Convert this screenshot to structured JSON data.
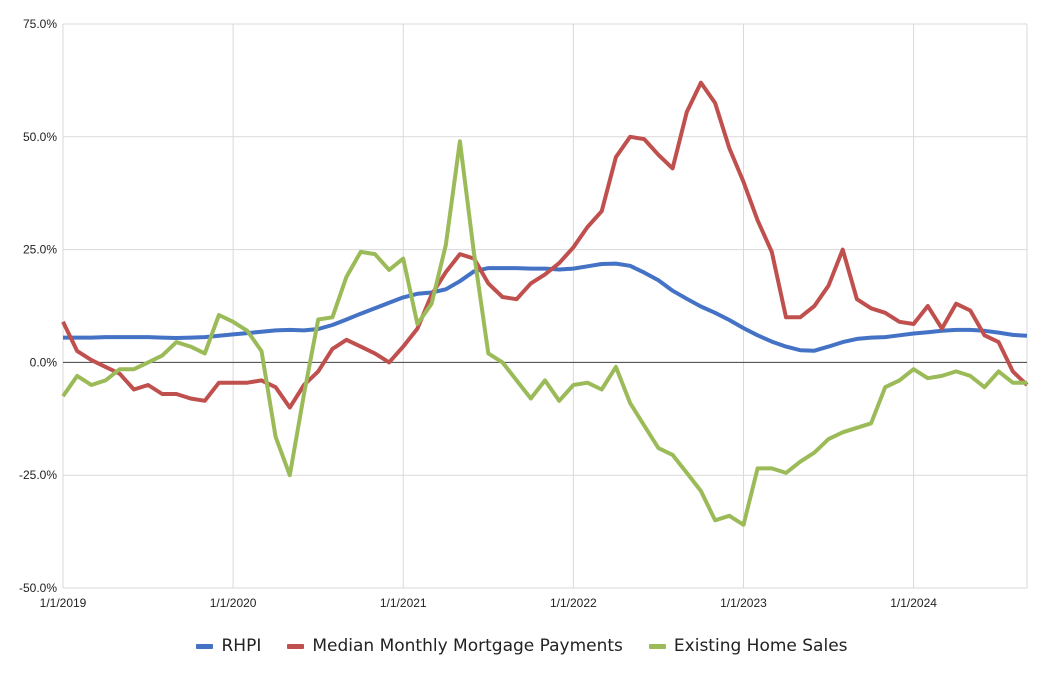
{
  "chart_data": {
    "type": "line",
    "title": "",
    "xlabel": "",
    "ylabel": "",
    "ylim": [
      -50,
      75
    ],
    "y_ticks": [
      "75.0%",
      "50.0%",
      "25.0%",
      "0.0%",
      "-25.0%",
      "-50.0%"
    ],
    "y_tick_values": [
      75,
      50,
      25,
      0,
      -25,
      -50
    ],
    "x_ticks": [
      "1/1/2019",
      "1/1/2020",
      "1/1/2021",
      "1/1/2022",
      "1/1/2023",
      "1/1/2024"
    ],
    "x_tick_values": [
      "2019-01",
      "2020-01",
      "2021-01",
      "2022-01",
      "2023-01",
      "2024-01"
    ],
    "grid": true,
    "legend_position": "bottom",
    "x": [
      "2019-01",
      "2019-02",
      "2019-03",
      "2019-04",
      "2019-05",
      "2019-06",
      "2019-07",
      "2019-08",
      "2019-09",
      "2019-10",
      "2019-11",
      "2019-12",
      "2020-01",
      "2020-02",
      "2020-03",
      "2020-04",
      "2020-05",
      "2020-06",
      "2020-07",
      "2020-08",
      "2020-09",
      "2020-10",
      "2020-11",
      "2020-12",
      "2021-01",
      "2021-02",
      "2021-03",
      "2021-04",
      "2021-05",
      "2021-06",
      "2021-07",
      "2021-08",
      "2021-09",
      "2021-10",
      "2021-11",
      "2021-12",
      "2022-01",
      "2022-02",
      "2022-03",
      "2022-04",
      "2022-05",
      "2022-06",
      "2022-07",
      "2022-08",
      "2022-09",
      "2022-10",
      "2022-11",
      "2022-12",
      "2023-01",
      "2023-02",
      "2023-03",
      "2023-04",
      "2023-05",
      "2023-06",
      "2023-07",
      "2023-08",
      "2023-09",
      "2023-10",
      "2023-11",
      "2023-12",
      "2024-01",
      "2024-02",
      "2024-03",
      "2024-04",
      "2024-05",
      "2024-06",
      "2024-07",
      "2024-08",
      "2024-09"
    ],
    "series": [
      {
        "name": "RHPI",
        "color": "#4472C4",
        "values": [
          5.5,
          5.5,
          5.5,
          5.6,
          5.6,
          5.6,
          5.6,
          5.5,
          5.4,
          5.5,
          5.6,
          5.9,
          6.2,
          6.5,
          6.8,
          7.1,
          7.2,
          7.1,
          7.4,
          8.3,
          9.5,
          10.8,
          12.0,
          13.2,
          14.4,
          15.2,
          15.5,
          16.2,
          18.0,
          20.2,
          20.9,
          20.9,
          20.9,
          20.8,
          20.8,
          20.6,
          20.8,
          21.3,
          21.8,
          21.9,
          21.4,
          19.9,
          18.2,
          15.9,
          14.1,
          12.4,
          11.0,
          9.4,
          7.6,
          6.0,
          4.6,
          3.5,
          2.7,
          2.6,
          3.5,
          4.5,
          5.2,
          5.5,
          5.6,
          6.0,
          6.4,
          6.7,
          7.0,
          7.2,
          7.2,
          7.0,
          6.6,
          6.1,
          5.9
        ]
      },
      {
        "name": "Median Monthly Mortgage Payments",
        "color": "#C0504D",
        "values": [
          9.0,
          2.5,
          0.5,
          -1.0,
          -2.5,
          -6.0,
          -5.0,
          -7.0,
          -7.0,
          -8.0,
          -8.5,
          -4.5,
          -4.5,
          -4.5,
          -4.0,
          -5.5,
          -10.0,
          -5.0,
          -2.0,
          3.0,
          5.0,
          3.5,
          2.0,
          0.0,
          3.5,
          7.5,
          15.0,
          20.0,
          24.0,
          23.0,
          17.5,
          14.5,
          14.0,
          17.5,
          19.5,
          22.0,
          25.5,
          30.0,
          33.5,
          45.5,
          50.0,
          49.5,
          46.0,
          43.0,
          55.5,
          62.0,
          57.5,
          47.5,
          40.0,
          31.5,
          24.5,
          10.0,
          10.0,
          12.5,
          17.0,
          25.0,
          14.0,
          12.0,
          11.0,
          9.0,
          8.5,
          12.5,
          7.5,
          13.0,
          11.5,
          6.0,
          4.5,
          -2.0,
          -5.0
        ]
      },
      {
        "name": "Existing Home Sales",
        "color": "#9BBB59",
        "values": [
          -7.5,
          -3.0,
          -5.0,
          -4.0,
          -1.5,
          -1.5,
          0.0,
          1.5,
          4.5,
          3.5,
          2.0,
          10.5,
          9.0,
          7.0,
          2.5,
          -16.5,
          -25.0,
          -7.0,
          9.5,
          10.0,
          19.0,
          24.5,
          24.0,
          20.5,
          23.0,
          8.5,
          13.0,
          26.0,
          49.0,
          24.0,
          2.0,
          0.0,
          -4.0,
          -8.0,
          -4.0,
          -8.5,
          -5.0,
          -4.5,
          -6.0,
          -1.0,
          -9.0,
          -14.0,
          -19.0,
          -20.5,
          -24.5,
          -28.5,
          -35.0,
          -34.0,
          -36.0,
          -23.5,
          -23.5,
          -24.5,
          -22.0,
          -20.0,
          -17.0,
          -15.5,
          -14.5,
          -13.5,
          -5.5,
          -4.0,
          -1.5,
          -3.5,
          -3.0,
          -2.0,
          -3.0,
          -5.5,
          -2.0,
          -4.5,
          -4.5
        ]
      }
    ]
  }
}
